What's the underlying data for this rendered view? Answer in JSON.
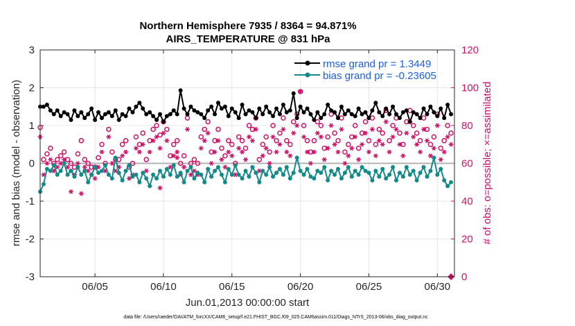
{
  "chart_data": {
    "type": "line",
    "title": "Northern Hemisphere 7935 / 8364 = 94.871%",
    "subtitle": "AIRS_TEMPERATURE @ 831 hPa",
    "xlabel": "Jun.01,2013 00:00:00 start",
    "ylabel": "rmse and bias (model - observation)",
    "ylabel_right": "# of obs: o=possible; ×=assimilated",
    "footnote": "data file: /Users/raeder/DAI/ATM_forcXX/CAM6_setup/f.e21.FHIST_BGC.f09_025.CAM6assim.011/Diags_NTrS_2013-06/obs_diag_output.nc",
    "xlim": [
      1.0,
      31.25
    ],
    "ylim": [
      -3,
      3
    ],
    "ylim_right": [
      0,
      120
    ],
    "x_ticks": [
      5,
      10,
      15,
      20,
      25,
      30
    ],
    "x_tick_labels": [
      "06/05",
      "06/10",
      "06/15",
      "06/20",
      "06/25",
      "06/30"
    ],
    "y_ticks": [
      -3,
      -2,
      -1,
      0,
      1,
      2,
      3
    ],
    "y_tick_labels": [
      "-3",
      "-2",
      "-1",
      "0",
      "1",
      "2",
      "3"
    ],
    "y_right_ticks": [
      0,
      20,
      40,
      60,
      80,
      100,
      120
    ],
    "y_right_tick_labels": [
      "0",
      "20",
      "40",
      "60",
      "80",
      "100",
      "120"
    ],
    "grid": true,
    "legend_position": "top-right",
    "x": [
      1.0,
      1.25,
      1.5,
      1.75,
      2.0,
      2.25,
      2.5,
      2.75,
      3.0,
      3.25,
      3.5,
      3.75,
      4.0,
      4.25,
      4.5,
      4.75,
      5.0,
      5.25,
      5.5,
      5.75,
      6.0,
      6.25,
      6.5,
      6.75,
      7.0,
      7.25,
      7.5,
      7.75,
      8.0,
      8.25,
      8.5,
      8.75,
      9.0,
      9.25,
      9.5,
      9.75,
      10.0,
      10.25,
      10.5,
      10.75,
      11.0,
      11.25,
      11.5,
      11.75,
      12.0,
      12.25,
      12.5,
      12.75,
      13.0,
      13.25,
      13.5,
      13.75,
      14.0,
      14.25,
      14.5,
      14.75,
      15.0,
      15.25,
      15.5,
      15.75,
      16.0,
      16.25,
      16.5,
      16.75,
      17.0,
      17.25,
      17.5,
      17.75,
      18.0,
      18.25,
      18.5,
      18.75,
      19.0,
      19.25,
      19.5,
      19.75,
      20.0,
      20.25,
      20.5,
      20.75,
      21.0,
      21.25,
      21.5,
      21.75,
      22.0,
      22.25,
      22.5,
      22.75,
      23.0,
      23.25,
      23.5,
      23.75,
      24.0,
      24.25,
      24.5,
      24.75,
      25.0,
      25.25,
      25.5,
      25.75,
      26.0,
      26.25,
      26.5,
      26.75,
      27.0,
      27.25,
      27.5,
      27.75,
      28.0,
      28.25,
      28.5,
      28.75,
      29.0,
      29.25,
      29.5,
      29.75,
      30.0,
      30.25,
      30.5,
      30.75,
      31.0
    ],
    "series": [
      {
        "name": "rmse",
        "legend_label": "rmse grand pr = 1.3449",
        "color": "#000000",
        "marker": "filled-circle",
        "values": [
          1.5,
          1.5,
          1.55,
          1.4,
          1.3,
          1.4,
          1.25,
          1.35,
          1.3,
          1.15,
          1.4,
          1.25,
          1.35,
          1.2,
          1.3,
          1.45,
          1.15,
          1.35,
          1.2,
          1.3,
          1.35,
          1.25,
          1.4,
          1.15,
          1.3,
          1.25,
          1.45,
          1.35,
          1.5,
          1.6,
          1.45,
          1.3,
          1.35,
          1.25,
          1.15,
          1.3,
          1.1,
          1.25,
          1.3,
          1.4,
          1.3,
          1.25,
          1.45,
          1.3,
          1.5,
          1.4,
          1.35,
          1.3,
          1.2,
          1.4,
          1.5,
          1.3,
          1.6,
          1.45,
          1.5,
          1.25,
          1.45,
          1.35,
          1.2,
          1.55,
          1.3,
          1.4,
          1.35,
          1.2,
          1.45,
          1.3,
          1.5,
          1.35,
          1.25,
          1.45,
          1.3,
          1.55,
          1.35,
          1.4,
          1.3,
          1.2,
          1.5,
          1.35,
          1.45,
          1.3,
          1.15,
          1.35,
          1.2,
          1.3,
          1.55,
          1.4,
          1.35,
          1.2,
          1.5,
          1.3,
          1.4,
          1.3,
          1.25,
          1.45,
          1.3,
          1.35,
          1.2,
          1.4,
          1.6,
          1.35,
          1.25,
          1.45,
          1.3,
          1.5,
          1.3,
          1.2,
          1.35,
          1.4,
          1.1,
          1.35,
          1.3,
          1.2,
          1.45,
          1.3,
          1.5,
          1.35,
          1.25,
          1.45,
          1.2,
          1.55,
          1.3
        ],
        "spikes": [
          [
            11.25,
            1.93
          ],
          [
            19.5,
            1.85
          ]
        ]
      },
      {
        "name": "bias",
        "legend_label": "bias grand pr = -0.23605",
        "color": "#138a8a",
        "marker": "filled-circle",
        "values": [
          -0.75,
          -0.55,
          -0.15,
          -0.2,
          -0.05,
          -0.3,
          -0.2,
          0.0,
          -0.3,
          -0.2,
          -0.35,
          -0.1,
          -0.3,
          -0.2,
          -0.5,
          -0.3,
          -0.1,
          -0.25,
          -0.2,
          -0.05,
          -0.3,
          -0.4,
          -0.15,
          -0.25,
          -0.45,
          -0.2,
          -0.05,
          -0.35,
          -0.3,
          -0.5,
          -0.25,
          -0.4,
          -0.6,
          -0.3,
          -0.4,
          -0.2,
          -0.35,
          -0.15,
          -0.3,
          -0.05,
          -0.35,
          -0.25,
          -0.5,
          -0.2,
          -0.1,
          -0.4,
          -0.25,
          -0.3,
          -0.5,
          -0.15,
          -0.35,
          -0.2,
          -0.1,
          -0.3,
          -0.5,
          -0.15,
          -0.3,
          -0.05,
          -0.3,
          -0.4,
          -0.2,
          -0.35,
          -0.1,
          -0.25,
          -0.5,
          -0.2,
          -0.3,
          -0.1,
          -0.35,
          -0.25,
          -0.15,
          -0.3,
          -0.1,
          -0.4,
          -0.25,
          -0.45,
          -0.2,
          -0.3,
          -0.15,
          -0.35,
          -0.4,
          -0.2,
          -0.25,
          -0.1,
          -0.45,
          -0.2,
          -0.3,
          -0.15,
          -0.4,
          -0.25,
          -0.1,
          -0.35,
          -0.2,
          -0.3,
          -0.1,
          -0.2,
          -0.25,
          -0.45,
          -0.2,
          -0.35,
          -0.15,
          -0.4,
          -0.3,
          -0.1,
          -0.45,
          -0.25,
          -0.35,
          -0.1,
          -0.3,
          -0.2,
          -0.45,
          -0.25,
          -0.1,
          -0.35,
          -0.2,
          -0.4,
          -0.3,
          -0.15,
          -0.45,
          -0.25,
          -0.5
        ],
        "spikes": [
          [
            6.5,
            0.15
          ],
          [
            19.75,
            0.15
          ],
          [
            29.75,
            0.15
          ],
          [
            30.75,
            -0.6
          ]
        ]
      },
      {
        "name": "obs_possible",
        "legend_label": "o=possible",
        "color": "#cc1166",
        "marker": "open-circle",
        "axis": "right",
        "values": [
          79,
          62,
          65,
          68,
          60,
          62,
          64,
          66,
          62,
          60,
          58,
          65,
          72,
          62,
          60,
          58,
          58,
          63,
          70,
          60,
          78,
          66,
          62,
          62,
          70,
          72,
          58,
          60,
          74,
          70,
          76,
          62,
          72,
          78,
          80,
          75,
          82,
          78,
          64,
          70,
          72,
          60,
          64,
          84,
          60,
          62,
          60,
          74,
          78,
          82,
          66,
          72,
          78,
          68,
          64,
          72,
          70,
          60,
          74,
          72,
          68,
          80,
          78,
          84,
          62,
          70,
          74,
          66,
          80,
          72,
          76,
          84,
          72,
          70,
          82,
          86,
          98,
          80,
          72,
          66,
          72,
          82,
          80,
          68,
          74,
          86,
          76,
          72,
          84,
          66,
          70,
          74,
          80,
          68,
          76,
          82,
          72,
          84,
          70,
          78,
          76,
          88,
          72,
          80,
          84,
          76,
          70,
          82,
          88,
          80,
          76,
          72,
          84,
          78,
          70,
          74,
          86,
          68,
          72,
          80,
          76
        ]
      },
      {
        "name": "obs_assimilated",
        "legend_label": "×=assimilated",
        "color": "#cc1166",
        "marker": "asterisk",
        "axis": "right",
        "values": [
          74,
          54,
          60,
          62,
          56,
          58,
          60,
          62,
          58,
          56,
          54,
          60,
          44,
          58,
          56,
          54,
          52,
          58,
          66,
          56,
          74,
          60,
          56,
          58,
          64,
          66,
          52,
          54,
          68,
          66,
          70,
          56,
          66,
          72,
          74,
          68,
          76,
          72,
          58,
          64,
          66,
          54,
          58,
          78,
          54,
          56,
          54,
          68,
          72,
          76,
          60,
          66,
          72,
          62,
          58,
          66,
          64,
          54,
          68,
          66,
          62,
          74,
          72,
          78,
          56,
          64,
          68,
          60,
          74,
          66,
          70,
          78,
          66,
          64,
          76,
          80,
          98,
          74,
          66,
          60,
          66,
          76,
          74,
          62,
          68,
          80,
          70,
          66,
          78,
          60,
          64,
          68,
          74,
          62,
          70,
          76,
          66,
          78,
          64,
          72,
          70,
          82,
          66,
          74,
          78,
          70,
          64,
          76,
          82,
          74,
          70,
          66,
          78,
          72,
          64,
          68,
          80,
          62,
          66,
          74,
          70
        ],
        "outliers": [
          [
            3.25,
            45
          ],
          [
            9.75,
            47
          ],
          [
            11.0,
            63
          ]
        ]
      }
    ],
    "hline": 0,
    "last_point_right": [
      31.0,
      0
    ]
  }
}
